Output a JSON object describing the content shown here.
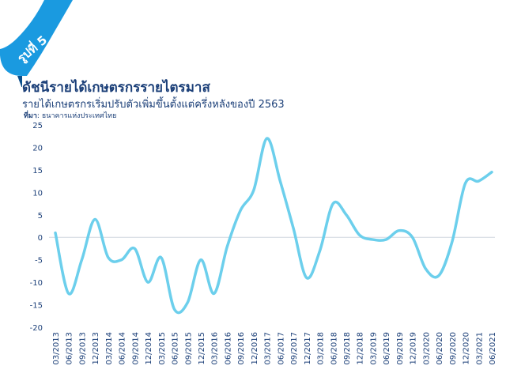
{
  "badge": {
    "label": "รูปที่ 5",
    "color": "#1a9ae0"
  },
  "header": {
    "title": "ดัชนีรายได้เกษตรกรรายไตรมาส",
    "subtitle": "รายได้เกษตรกรเริ่มปรับตัวเพิ่มขึ้นตั้งแต่ครึ่งหลังของปี 2563",
    "source_label": "ที่มา",
    "source_text": ": ธนาคารแห่งประเทศไทย"
  },
  "chart_data": {
    "type": "line",
    "title": "",
    "xlabel": "",
    "ylabel": "",
    "ylim": [
      -20,
      25
    ],
    "yticks": [
      25,
      20,
      15,
      10,
      5,
      0,
      -5,
      -10,
      -15,
      -20
    ],
    "grid": false,
    "zero_line": true,
    "line_color": "#6ccfec",
    "categories": [
      "03/2013",
      "06/2013",
      "09/2013",
      "12/2013",
      "03/2014",
      "06/2014",
      "09/2014",
      "12/2014",
      "03/2015",
      "06/2015",
      "09/2015",
      "12/2015",
      "03/2016",
      "06/2016",
      "09/2016",
      "12/2016",
      "03/2017",
      "06/2017",
      "09/2017",
      "12/2017",
      "03/2018",
      "06/2018",
      "09/2018",
      "12/2018",
      "03/2019",
      "06/2019",
      "09/2019",
      "12/2019",
      "03/2020",
      "06/2020",
      "09/2020",
      "12/2020",
      "03/2021",
      "06/2021"
    ],
    "values": [
      1,
      -12.5,
      -5,
      4,
      -4.5,
      -5,
      -2.5,
      -10,
      -4.5,
      -16,
      -14.5,
      -5,
      -12.5,
      -2,
      6,
      10.5,
      22,
      12.5,
      2,
      -9,
      -3,
      7.5,
      5,
      0.5,
      -0.5,
      -0.5,
      1.5,
      0,
      -7,
      -8.5,
      -1,
      12,
      12.5,
      14.5
    ]
  }
}
